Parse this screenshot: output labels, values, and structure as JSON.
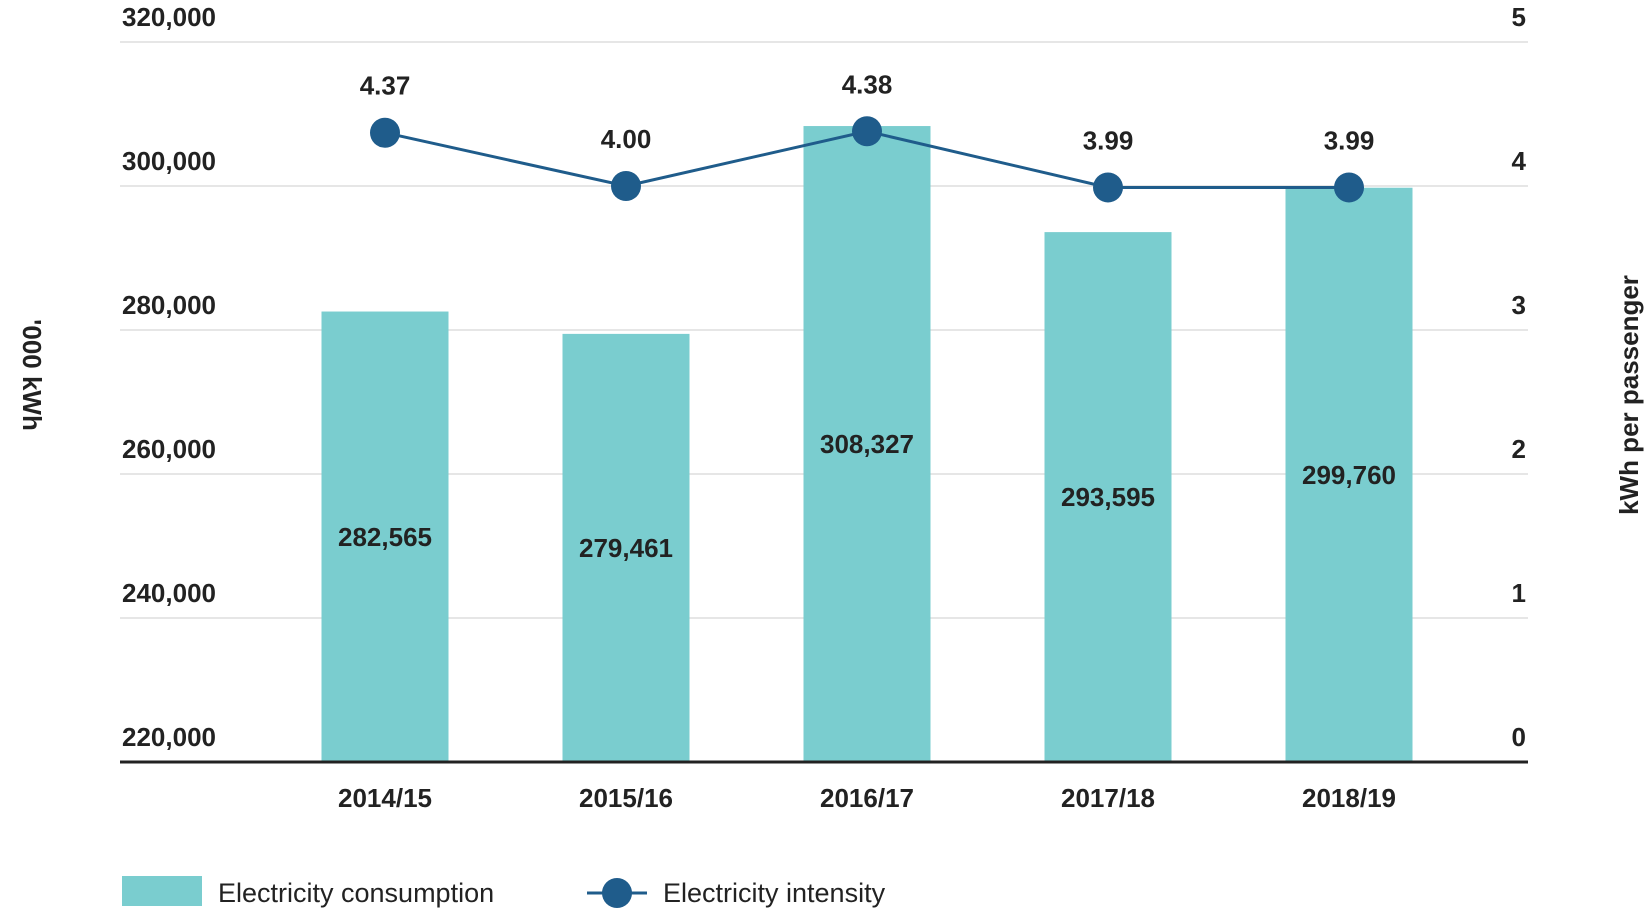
{
  "chart_data": {
    "type": "bar",
    "title": "",
    "categories": [
      "2014/15",
      "2015/16",
      "2016/17",
      "2017/18",
      "2018/19"
    ],
    "series": [
      {
        "name": "Electricity consumption",
        "kind": "bar",
        "axis": "left",
        "values": [
          282565,
          279461,
          308327,
          293595,
          299760
        ],
        "labels": [
          "282,565",
          "279,461",
          "308,327",
          "293,595",
          "299,760"
        ]
      },
      {
        "name": "Electricity intensity",
        "kind": "line",
        "axis": "right",
        "values": [
          4.37,
          4.0,
          4.38,
          3.99,
          3.99
        ],
        "labels": [
          "4.37",
          "4.00",
          "4.38",
          "3.99",
          "3.99"
        ]
      }
    ],
    "ylabel": "'000 kWh",
    "y2label": "kWh per passenger",
    "ylim": [
      220000,
      320000
    ],
    "y2lim": [
      0,
      5
    ],
    "yticks": [
      220000,
      240000,
      260000,
      280000,
      300000,
      320000
    ],
    "yticklabels": [
      "220,000",
      "240,000",
      "260,000",
      "280,000",
      "300,000",
      "320,000"
    ],
    "y2ticks": [
      0,
      1,
      2,
      3,
      4,
      5
    ],
    "y2ticklabels": [
      "0",
      "1",
      "2",
      "3",
      "4",
      "5"
    ],
    "grid": true,
    "legend_position": "bottom-left"
  },
  "colors": {
    "bar": "#7acdcf",
    "line": "#1f5c8b",
    "grid": "#dddddd",
    "axis": "#222222",
    "text": "#222222"
  },
  "legend": {
    "consumption_label": "Electricity consumption",
    "intensity_label": "Electricity intensity"
  }
}
